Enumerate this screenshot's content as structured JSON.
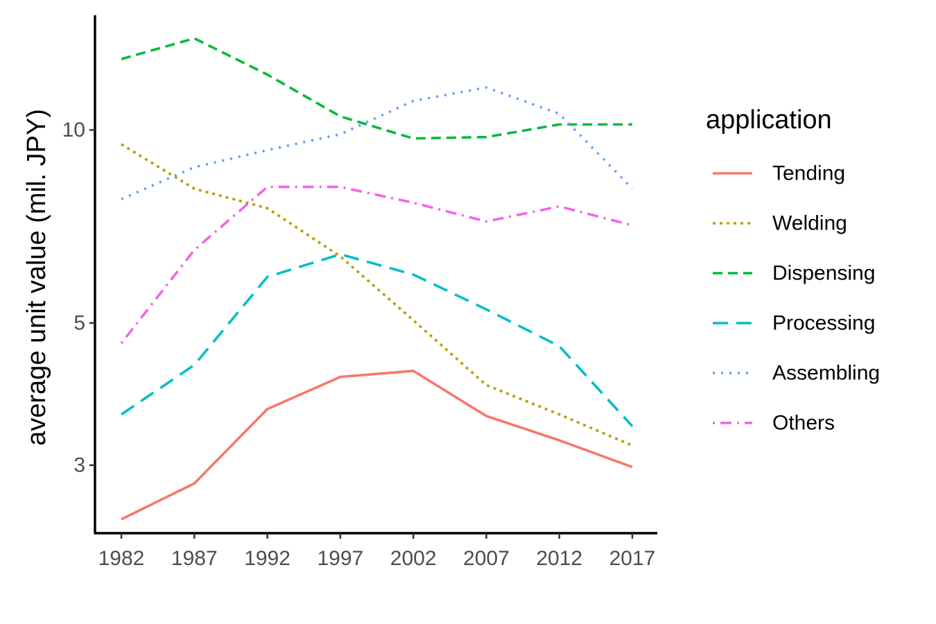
{
  "chart_data": {
    "type": "line",
    "title": "",
    "xlabel": "",
    "ylabel": "average unit value (mil. JPY)",
    "y_scale": "log",
    "ylim": [
      2.35,
      15.1
    ],
    "y_ticks": [
      3,
      5,
      10
    ],
    "y_tick_labels": [
      "3",
      "5",
      "10"
    ],
    "x": [
      1982,
      1987,
      1992,
      1997,
      2002,
      2007,
      2012,
      2017
    ],
    "x_tick_labels": [
      "1982",
      "1987",
      "1992",
      "1997",
      "2002",
      "2007",
      "2012",
      "2017"
    ],
    "grid": false,
    "legend": {
      "title": "application",
      "position": "right"
    },
    "series": [
      {
        "name": "Tending",
        "color": "#F8766D",
        "linetype": "solid",
        "values": [
          2.47,
          2.81,
          3.67,
          4.12,
          4.21,
          3.58,
          3.28,
          2.98
        ]
      },
      {
        "name": "Welding",
        "color": "#B79F00",
        "linetype": "dotted",
        "values": [
          9.5,
          8.1,
          7.55,
          6.35,
          5.05,
          4.0,
          3.6,
          3.22
        ]
      },
      {
        "name": "Dispensing",
        "color": "#00BA38",
        "linetype": "dashed",
        "values": [
          12.9,
          13.9,
          12.2,
          10.5,
          9.7,
          9.75,
          10.2,
          10.2
        ]
      },
      {
        "name": "Processing",
        "color": "#00BFC4",
        "linetype": "longdash",
        "values": [
          3.6,
          4.3,
          5.9,
          6.4,
          5.95,
          5.25,
          4.6,
          3.45
        ]
      },
      {
        "name": "Assembling",
        "color": "#619CFF",
        "linetype": "dotted-fine",
        "values": [
          7.8,
          8.75,
          9.3,
          9.85,
          11.1,
          11.65,
          10.6,
          8.1
        ]
      },
      {
        "name": "Others",
        "color": "#F564E3",
        "linetype": "dotdash",
        "values": [
          4.65,
          6.5,
          8.15,
          8.15,
          7.7,
          7.2,
          7.6,
          7.1
        ]
      }
    ]
  }
}
